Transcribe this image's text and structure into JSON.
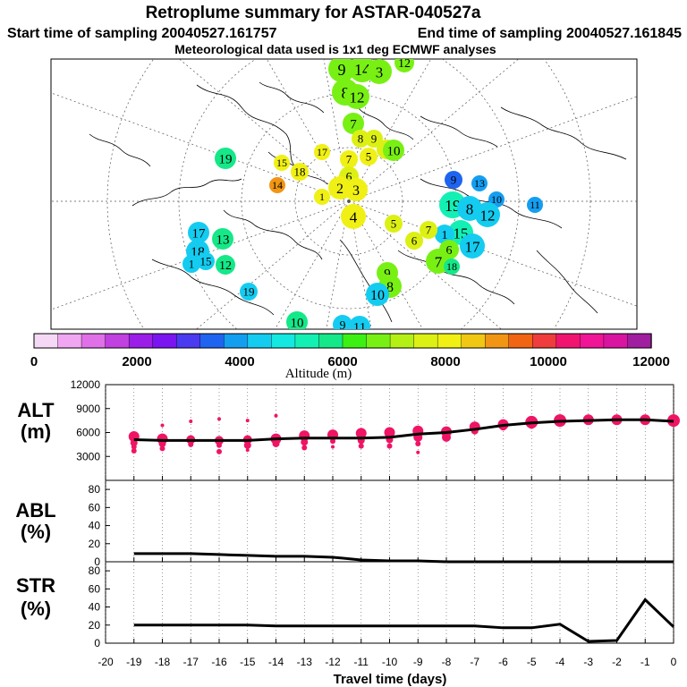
{
  "header": {
    "title": "Retroplume summary for ASTAR-040527a",
    "start_time": "Start time of sampling 20040527.161757",
    "end_time": "End time of sampling 20040527.161845",
    "met_data": "Meteorological data used is 1x1 deg ECMWF analyses"
  },
  "colorbar": {
    "label": "Altitude (m)",
    "tick_labels": [
      "0",
      "2000",
      "4000",
      "6000",
      "8000",
      "10000",
      "12000"
    ],
    "colors": [
      "#f5d8f5",
      "#f0a6f0",
      "#e070e8",
      "#c040e0",
      "#9b1ee8",
      "#7a14f0",
      "#4a3af0",
      "#1e64f0",
      "#149ef0",
      "#14ccf0",
      "#14e8e0",
      "#14f0b4",
      "#14e888",
      "#3cf014",
      "#78f014",
      "#b4f014",
      "#dcf014",
      "#f0f014",
      "#f0c814",
      "#f09614",
      "#f06414",
      "#f03c3c",
      "#f01470",
      "#f01496",
      "#d814a0",
      "#a01ea0"
    ]
  },
  "map": {
    "markers": [
      {
        "n": "9",
        "c": "#78f014",
        "s": 1.0
      },
      {
        "n": "14",
        "c": "#78f014",
        "s": 1.0
      },
      {
        "n": "3",
        "c": "#78f014",
        "s": 0.9
      },
      {
        "n": "8",
        "c": "#78f014",
        "s": 1.0
      },
      {
        "n": "12",
        "c": "#78f014",
        "s": 0.9
      },
      {
        "n": "12",
        "c": "#78f014",
        "s": 0.6
      },
      {
        "n": "7",
        "c": "#78f014",
        "s": 0.7
      },
      {
        "n": "8",
        "c": "#dcf014",
        "s": 0.5
      },
      {
        "n": "9",
        "c": "#dcf014",
        "s": 0.5
      },
      {
        "n": "6",
        "c": "#dcf014",
        "s": 0.6
      },
      {
        "n": "10",
        "c": "#78f014",
        "s": 0.7
      },
      {
        "n": "5",
        "c": "#f0f014",
        "s": 0.5
      },
      {
        "n": "7",
        "c": "#f0f014",
        "s": 0.5
      },
      {
        "n": "19",
        "c": "#14e888",
        "s": 0.7
      },
      {
        "n": "17",
        "c": "#f0f014",
        "s": 0.4
      },
      {
        "n": "15",
        "c": "#f0f014",
        "s": 0.4
      },
      {
        "n": "18",
        "c": "#f0f014",
        "s": 0.5
      },
      {
        "n": "14",
        "c": "#f09614",
        "s": 0.4
      },
      {
        "n": "1",
        "c": "#f0f014",
        "s": 0.4
      },
      {
        "n": "6",
        "c": "#dcf014",
        "s": 0.6
      },
      {
        "n": "2",
        "c": "#f0f014",
        "s": 0.8
      },
      {
        "n": "3",
        "c": "#f0f014",
        "s": 0.8
      },
      {
        "n": "4",
        "c": "#f0f014",
        "s": 0.9
      },
      {
        "n": "9",
        "c": "#1e64f0",
        "s": 0.5
      },
      {
        "n": "13",
        "c": "#149ef0",
        "s": 0.4
      },
      {
        "n": "10",
        "c": "#149ef0",
        "s": 0.4
      },
      {
        "n": "11",
        "c": "#149ef0",
        "s": 0.4
      },
      {
        "n": "19",
        "c": "#14f0b4",
        "s": 1.0
      },
      {
        "n": "8",
        "c": "#14ccf0",
        "s": 0.9
      },
      {
        "n": "12",
        "c": "#14ccf0",
        "s": 0.9
      },
      {
        "n": "15",
        "c": "#14f0b4",
        "s": 0.9
      },
      {
        "n": "1",
        "c": "#14ccf0",
        "s": 0.6
      },
      {
        "n": "17",
        "c": "#14ccf0",
        "s": 0.9
      },
      {
        "n": "7",
        "c": "#dcf014",
        "s": 0.5
      },
      {
        "n": "6",
        "c": "#dcf014",
        "s": 0.5
      },
      {
        "n": "5",
        "c": "#dcf014",
        "s": 0.5
      },
      {
        "n": "6",
        "c": "#78f014",
        "s": 0.6
      },
      {
        "n": "7",
        "c": "#78f014",
        "s": 0.9
      },
      {
        "n": "18",
        "c": "#14e888",
        "s": 0.4
      },
      {
        "n": "9",
        "c": "#78f014",
        "s": 0.7
      },
      {
        "n": "8",
        "c": "#78f014",
        "s": 0.8
      },
      {
        "n": "10",
        "c": "#14ccf0",
        "s": 0.8
      },
      {
        "n": "17",
        "c": "#14ccf0",
        "s": 0.7
      },
      {
        "n": "13",
        "c": "#14e888",
        "s": 0.7
      },
      {
        "n": "18",
        "c": "#14ccf0",
        "s": 0.8
      },
      {
        "n": "15",
        "c": "#14ccf0",
        "s": 0.5
      },
      {
        "n": "1",
        "c": "#14ccf0",
        "s": 0.5
      },
      {
        "n": "12",
        "c": "#14e888",
        "s": 0.6
      },
      {
        "n": "19",
        "c": "#14ccf0",
        "s": 0.5
      },
      {
        "n": "10",
        "c": "#14e888",
        "s": 0.7
      },
      {
        "n": "9",
        "c": "#14ccf0",
        "s": 0.6
      },
      {
        "n": "11",
        "c": "#14ccf0",
        "s": 0.7
      }
    ]
  },
  "chart_data": [
    {
      "type": "scatter+line",
      "ylabel": "ALT (m)",
      "ylim": [
        0,
        12000
      ],
      "yticks": [
        "3000",
        "6000",
        "9000",
        "12000"
      ],
      "x": [
        -19,
        -18,
        -17,
        -16,
        -15,
        -14,
        -13,
        -12,
        -11,
        -10,
        -9,
        -8,
        -7,
        -6,
        -5,
        -4,
        -3,
        -2,
        -1,
        0
      ],
      "mean_altitude": [
        5100,
        5000,
        5000,
        5000,
        5000,
        5200,
        5300,
        5300,
        5300,
        5400,
        5800,
        6000,
        6400,
        6900,
        7200,
        7400,
        7500,
        7600,
        7600,
        7400
      ],
      "points": [
        {
          "x": -19,
          "y": 5500,
          "s": 6
        },
        {
          "x": -19,
          "y": 4700,
          "s": 4
        },
        {
          "x": -19,
          "y": 4200,
          "s": 3
        },
        {
          "x": -19,
          "y": 3700,
          "s": 3
        },
        {
          "x": -18,
          "y": 5200,
          "s": 6
        },
        {
          "x": -18,
          "y": 4600,
          "s": 4
        },
        {
          "x": -18,
          "y": 4000,
          "s": 3
        },
        {
          "x": -18,
          "y": 6900,
          "s": 2
        },
        {
          "x": -17,
          "y": 5100,
          "s": 5
        },
        {
          "x": -17,
          "y": 4500,
          "s": 3
        },
        {
          "x": -17,
          "y": 7400,
          "s": 2
        },
        {
          "x": -16,
          "y": 5000,
          "s": 5
        },
        {
          "x": -16,
          "y": 4400,
          "s": 3
        },
        {
          "x": -16,
          "y": 3600,
          "s": 3
        },
        {
          "x": -16,
          "y": 7700,
          "s": 2
        },
        {
          "x": -15,
          "y": 5100,
          "s": 5
        },
        {
          "x": -15,
          "y": 4400,
          "s": 4
        },
        {
          "x": -15,
          "y": 3800,
          "s": 2
        },
        {
          "x": -15,
          "y": 7500,
          "s": 2
        },
        {
          "x": -14,
          "y": 5200,
          "s": 6
        },
        {
          "x": -14,
          "y": 4600,
          "s": 4
        },
        {
          "x": -14,
          "y": 8100,
          "s": 2
        },
        {
          "x": -13,
          "y": 5600,
          "s": 6
        },
        {
          "x": -13,
          "y": 4800,
          "s": 4
        },
        {
          "x": -13,
          "y": 4100,
          "s": 3
        },
        {
          "x": -12,
          "y": 5700,
          "s": 6
        },
        {
          "x": -12,
          "y": 4900,
          "s": 3
        },
        {
          "x": -12,
          "y": 4200,
          "s": 2
        },
        {
          "x": -11,
          "y": 5900,
          "s": 6
        },
        {
          "x": -11,
          "y": 5000,
          "s": 4
        },
        {
          "x": -11,
          "y": 4300,
          "s": 3
        },
        {
          "x": -10,
          "y": 6000,
          "s": 6
        },
        {
          "x": -10,
          "y": 5100,
          "s": 4
        },
        {
          "x": -10,
          "y": 4300,
          "s": 3
        },
        {
          "x": -9,
          "y": 6200,
          "s": 6
        },
        {
          "x": -9,
          "y": 5400,
          "s": 5
        },
        {
          "x": -9,
          "y": 4600,
          "s": 3
        },
        {
          "x": -9,
          "y": 3500,
          "s": 2
        },
        {
          "x": -8,
          "y": 6100,
          "s": 6
        },
        {
          "x": -8,
          "y": 5400,
          "s": 5
        },
        {
          "x": -7,
          "y": 6700,
          "s": 6
        },
        {
          "x": -7,
          "y": 6200,
          "s": 4
        },
        {
          "x": -6,
          "y": 7000,
          "s": 6
        },
        {
          "x": -6,
          "y": 6700,
          "s": 4
        },
        {
          "x": -5,
          "y": 7300,
          "s": 7
        },
        {
          "x": -5,
          "y": 6900,
          "s": 4
        },
        {
          "x": -4,
          "y": 7500,
          "s": 7
        },
        {
          "x": -4,
          "y": 7100,
          "s": 3
        },
        {
          "x": -3,
          "y": 7600,
          "s": 6
        },
        {
          "x": -3,
          "y": 7300,
          "s": 3
        },
        {
          "x": -2,
          "y": 7600,
          "s": 6
        },
        {
          "x": -2,
          "y": 7400,
          "s": 3
        },
        {
          "x": -1,
          "y": 7600,
          "s": 6
        },
        {
          "x": -1,
          "y": 7400,
          "s": 3
        },
        {
          "x": 0,
          "y": 7500,
          "s": 7
        }
      ]
    },
    {
      "type": "line",
      "ylabel": "ABL (%)",
      "ylim": [
        0,
        90
      ],
      "yticks": [
        "0",
        "20",
        "40",
        "60",
        "80"
      ],
      "x": [
        -19,
        -18,
        -17,
        -16,
        -15,
        -14,
        -13,
        -12,
        -11,
        -10,
        -9,
        -8,
        -7,
        -6,
        -5,
        -4,
        -3,
        -2,
        -1,
        0
      ],
      "values": [
        9,
        9,
        9,
        8,
        7,
        6,
        6,
        5,
        2,
        1,
        1,
        0,
        0,
        0,
        0,
        0,
        0,
        0,
        0,
        0
      ]
    },
    {
      "type": "line",
      "ylabel": "STR (%)",
      "ylim": [
        0,
        90
      ],
      "yticks": [
        "0",
        "20",
        "40",
        "60",
        "80"
      ],
      "x": [
        -19,
        -18,
        -17,
        -16,
        -15,
        -14,
        -13,
        -12,
        -11,
        -10,
        -9,
        -8,
        -7,
        -6,
        -5,
        -4,
        -3,
        -2,
        -1,
        0
      ],
      "values": [
        20,
        20,
        20,
        20,
        20,
        19,
        19,
        19,
        19,
        19,
        19,
        19,
        19,
        17,
        17,
        21,
        2,
        3,
        48,
        18
      ]
    }
  ],
  "xaxis": {
    "label": "Travel time (days)",
    "tick_labels": [
      "-20",
      "-19",
      "-18",
      "-17",
      "-16",
      "-15",
      "-14",
      "-13",
      "-12",
      "-11",
      "-10",
      "-9",
      "-8",
      "-7",
      "-6",
      "-5",
      "-4",
      "-3",
      "-2",
      "-1",
      "0"
    ]
  }
}
